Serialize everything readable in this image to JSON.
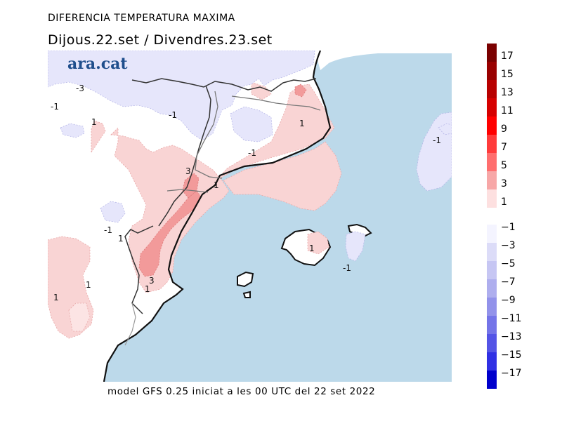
{
  "header": {
    "title": "DIFERENCIA TEMPERATURA MAXIMA",
    "subtitle": "Dijous.22.set / Divendres.23.set"
  },
  "footer": {
    "note": "model GFS 0.25 iniciat a les 00 UTC del 22 set 2022"
  },
  "logo": {
    "text": "ara.cat",
    "color": "#1f4e8c"
  },
  "map": {
    "sea_color": "#bcd9ea",
    "land_color": "#ffffff",
    "contour_labels": [
      {
        "text": "-3"
      },
      {
        "text": "-1"
      },
      {
        "text": "-1"
      },
      {
        "text": "1"
      },
      {
        "text": "1"
      },
      {
        "text": "-1"
      },
      {
        "text": "-1"
      },
      {
        "text": "3"
      },
      {
        "text": "1"
      },
      {
        "text": "-1"
      },
      {
        "text": "1"
      },
      {
        "text": "1"
      },
      {
        "text": "-1"
      },
      {
        "text": "3"
      },
      {
        "text": "1"
      },
      {
        "text": "1"
      },
      {
        "text": "1"
      }
    ]
  },
  "colorbar": {
    "positive_labels": [
      "17",
      "15",
      "13",
      "11",
      "9",
      "7",
      "5",
      "3",
      "1"
    ],
    "negative_labels": [
      "-1",
      "-3",
      "-5",
      "-7",
      "-9",
      "-11",
      "-13",
      "-15",
      "-17"
    ],
    "positive_colors": [
      "#7a0000",
      "#990000",
      "#b80000",
      "#d60000",
      "#ff0000",
      "#ff3b3b",
      "#ff6e6e",
      "#f7a7a7",
      "#fde0e0"
    ],
    "negative_colors": [
      "#f4f4ff",
      "#dcdcf8",
      "#c6c6f3",
      "#aeaeee",
      "#9292ea",
      "#7474e8",
      "#5454e6",
      "#3030e4",
      "#0000cc"
    ]
  }
}
